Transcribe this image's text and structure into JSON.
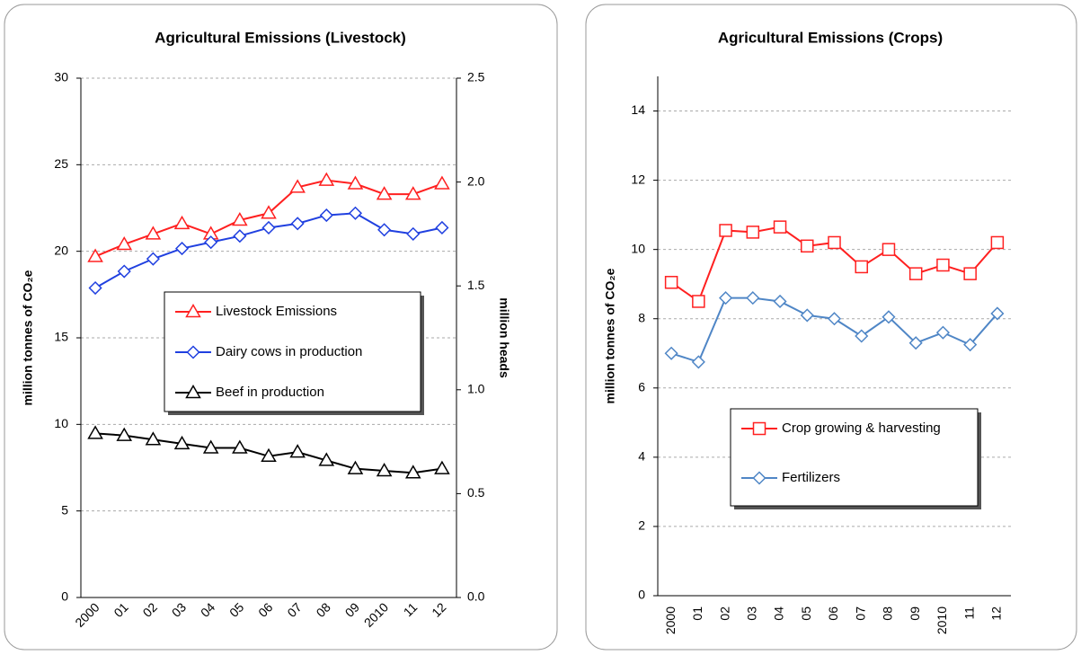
{
  "chart_data": [
    {
      "type": "line",
      "title": "Agricultural Emissions (Livestock)",
      "ylabel": "million tonnes of CO₂e",
      "y2label": "million heads",
      "categories": [
        "2000",
        "01",
        "02",
        "03",
        "04",
        "05",
        "06",
        "07",
        "08",
        "09",
        "2010",
        "11",
        "12"
      ],
      "ylim": [
        0,
        30
      ],
      "yticks": [
        0,
        5,
        10,
        15,
        20,
        25,
        30
      ],
      "y2lim": [
        0,
        2.5
      ],
      "y2ticks": [
        {
          "value": 0,
          "label": "0.0"
        },
        {
          "value": 0.5,
          "label": "0.5"
        },
        {
          "value": 1,
          "label": "1.0"
        },
        {
          "value": 1.5,
          "label": "1.5"
        },
        {
          "value": 2,
          "label": "2.0"
        },
        {
          "value": 2.5,
          "label": "2.5"
        }
      ],
      "grid": true,
      "xlabel_rotation": -45,
      "series": [
        {
          "name": "Livestock Emissions",
          "color": "#ff2020",
          "marker": "triangle",
          "values": [
            19.7,
            20.4,
            21.0,
            21.6,
            21.0,
            21.8,
            22.2,
            23.7,
            24.1,
            23.9,
            23.3,
            23.3,
            23.9
          ]
        },
        {
          "name": "Dairy cows in production",
          "color": "#2040e0",
          "marker": "diamond",
          "axis": "y2",
          "values": [
            1.49,
            1.57,
            1.63,
            1.68,
            1.71,
            1.74,
            1.78,
            1.8,
            1.84,
            1.85,
            1.77,
            1.75,
            1.78
          ]
        },
        {
          "name": "Beef in production",
          "color": "#000000",
          "marker": "triangle",
          "axis": "y2",
          "values": [
            0.79,
            0.78,
            0.76,
            0.74,
            0.72,
            0.72,
            0.68,
            0.7,
            0.66,
            0.62,
            0.61,
            0.6,
            0.62
          ]
        }
      ]
    },
    {
      "type": "line",
      "title": "Agricultural Emissions (Crops)",
      "ylabel": "million tonnes of CO₂e",
      "categories": [
        "2000",
        "01",
        "02",
        "03",
        "04",
        "05",
        "06",
        "07",
        "08",
        "09",
        "2010",
        "11",
        "12"
      ],
      "ylim": [
        0,
        15
      ],
      "yticks": [
        0,
        2,
        4,
        6,
        8,
        10,
        12,
        14
      ],
      "grid": true,
      "xlabel_rotation": -90,
      "series": [
        {
          "name": "Crop growing & harvesting",
          "color": "#ff2020",
          "marker": "square",
          "values": [
            9.05,
            8.5,
            10.55,
            10.5,
            10.65,
            10.1,
            10.2,
            9.5,
            10.0,
            9.3,
            9.55,
            9.3,
            10.2
          ]
        },
        {
          "name": "Fertilizers",
          "color": "#4f86c6",
          "marker": "diamond",
          "values": [
            7.0,
            6.75,
            8.6,
            8.6,
            8.5,
            8.1,
            8.0,
            7.5,
            8.05,
            7.3,
            7.6,
            7.25,
            8.15
          ]
        }
      ]
    }
  ]
}
